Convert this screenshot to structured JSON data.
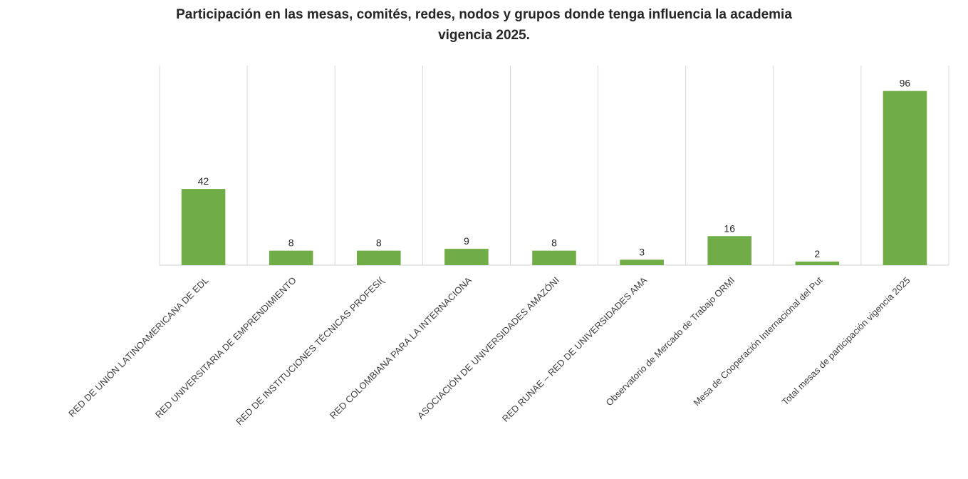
{
  "chart_data": {
    "type": "bar",
    "title_line1": "Participación en las mesas, comités, redes, nodos y grupos donde tenga influencia la academia",
    "title_line2": "vigencia 2025.",
    "categories": [
      "RED DE UNIÓN LATINOAMERICANA DE EDL",
      "RED UNIVERSITARIA DE EMPRENDIMIENTO",
      "RED DE INSTITUCIONES TÉCNICAS PROFESI(",
      "RED COLOMBIANA PARA LA INTERNACIONA",
      "ASOCIACIÓN DE UNIVERSIDADES AMAZÓNI",
      "RED RUNAE – RED DE UNIVERSIDADES AMA",
      "Observatorio de Mercado de Trabajo ORMI",
      "Mesa de Cooperación Internacional del Put",
      "Total mesas de participación  vigencia 2025"
    ],
    "values": [
      42,
      8,
      8,
      9,
      8,
      3,
      16,
      2,
      96
    ],
    "ylim": [
      0,
      110
    ],
    "grid": "vertical",
    "legend": "none",
    "bar_color": "#70ad47"
  }
}
